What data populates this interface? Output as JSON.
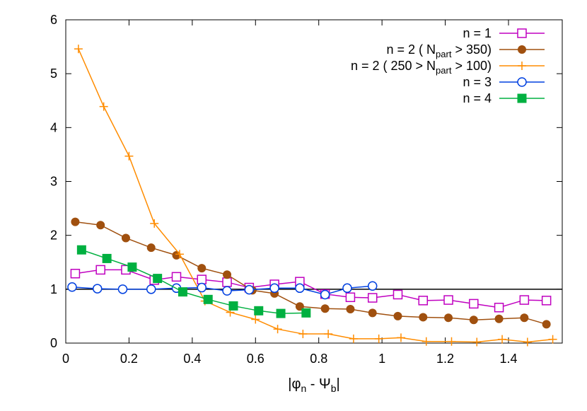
{
  "chart_data": {
    "type": "line",
    "title": "",
    "xlabel": "|φn - Ψb|",
    "xlabel_parts": {
      "pre": "|φ",
      "sub1": "n",
      "mid": " - Ψ",
      "sub2": "b",
      "post": "|"
    },
    "ylabel": "",
    "xlim": [
      0,
      1.57
    ],
    "ylim": [
      0,
      6
    ],
    "xticks": [
      0,
      0.2,
      0.4,
      0.6,
      0.8,
      1,
      1.2,
      1.4
    ],
    "xtick_labels": [
      "0",
      "0.2",
      "0.4",
      "0.6",
      "0.8",
      "1",
      "1.2",
      "1.4"
    ],
    "yticks": [
      0,
      1,
      2,
      3,
      4,
      5,
      6
    ],
    "ytick_labels": [
      "0",
      "1",
      "2",
      "3",
      "4",
      "5",
      "6"
    ],
    "reference_line": {
      "y": 1,
      "color": "#000000"
    },
    "grid": false,
    "legend_position": "top-right",
    "series": [
      {
        "name": "n = 1",
        "label_pre": "n = 1",
        "label_sub": "",
        "label_post": "",
        "color": "#c000c0",
        "marker": "open-square",
        "x": [
          0.03,
          0.11,
          0.19,
          0.28,
          0.35,
          0.43,
          0.51,
          0.58,
          0.66,
          0.74,
          0.82,
          0.9,
          0.97,
          1.05,
          1.13,
          1.21,
          1.29,
          1.37,
          1.45,
          1.52
        ],
        "y": [
          1.29,
          1.36,
          1.36,
          1.17,
          1.23,
          1.18,
          1.13,
          1.03,
          1.09,
          1.14,
          0.91,
          0.85,
          0.84,
          0.9,
          0.79,
          0.8,
          0.73,
          0.66,
          0.8,
          0.79
        ]
      },
      {
        "name": "n = 2 ( Npart > 350)",
        "label_pre": "n = 2 ( N",
        "label_sub": "part",
        "label_post": " > 350)",
        "color": "#a0500f",
        "marker": "filled-circle",
        "x": [
          0.03,
          0.11,
          0.19,
          0.27,
          0.35,
          0.43,
          0.51,
          0.59,
          0.66,
          0.74,
          0.82,
          0.9,
          0.97,
          1.05,
          1.13,
          1.21,
          1.29,
          1.37,
          1.45,
          1.52
        ],
        "y": [
          2.25,
          2.19,
          1.95,
          1.77,
          1.63,
          1.39,
          1.27,
          0.98,
          0.92,
          0.68,
          0.64,
          0.63,
          0.56,
          0.5,
          0.48,
          0.47,
          0.43,
          0.45,
          0.47,
          0.35
        ]
      },
      {
        "name": "n = 2 ( 250 > Npart > 100)",
        "label_pre": "n = 2 ( 250 > N",
        "label_sub": "part",
        "label_post": " > 100)",
        "color": "#ff8c00",
        "marker": "plus",
        "x": [
          0.04,
          0.12,
          0.2,
          0.28,
          0.36,
          0.44,
          0.52,
          0.6,
          0.67,
          0.75,
          0.83,
          0.91,
          0.99,
          1.06,
          1.14,
          1.22,
          1.3,
          1.38,
          1.46,
          1.54
        ],
        "y": [
          5.46,
          4.39,
          3.47,
          2.22,
          1.65,
          0.78,
          0.57,
          0.44,
          0.26,
          0.17,
          0.17,
          0.08,
          0.08,
          0.1,
          0.03,
          0.03,
          0.02,
          0.07,
          0.02,
          0.07
        ]
      },
      {
        "name": "n = 3",
        "label_pre": "n = 3",
        "label_sub": "",
        "label_post": "",
        "color": "#0040e0",
        "marker": "open-circle",
        "x": [
          0.02,
          0.1,
          0.18,
          0.27,
          0.35,
          0.43,
          0.51,
          0.58,
          0.66,
          0.74,
          0.82,
          0.89,
          0.97
        ],
        "y": [
          1.04,
          1.01,
          1.0,
          1.0,
          1.02,
          1.03,
          0.97,
          0.99,
          1.02,
          1.02,
          0.9,
          1.02,
          1.06
        ]
      },
      {
        "name": "n = 4",
        "label_pre": "n = 4",
        "label_sub": "",
        "label_post": "",
        "color": "#00b040",
        "marker": "filled-square",
        "x": [
          0.05,
          0.13,
          0.21,
          0.29,
          0.37,
          0.45,
          0.53,
          0.61,
          0.68,
          0.76
        ],
        "y": [
          1.73,
          1.57,
          1.41,
          1.2,
          0.95,
          0.81,
          0.69,
          0.6,
          0.55,
          0.56
        ]
      }
    ]
  }
}
